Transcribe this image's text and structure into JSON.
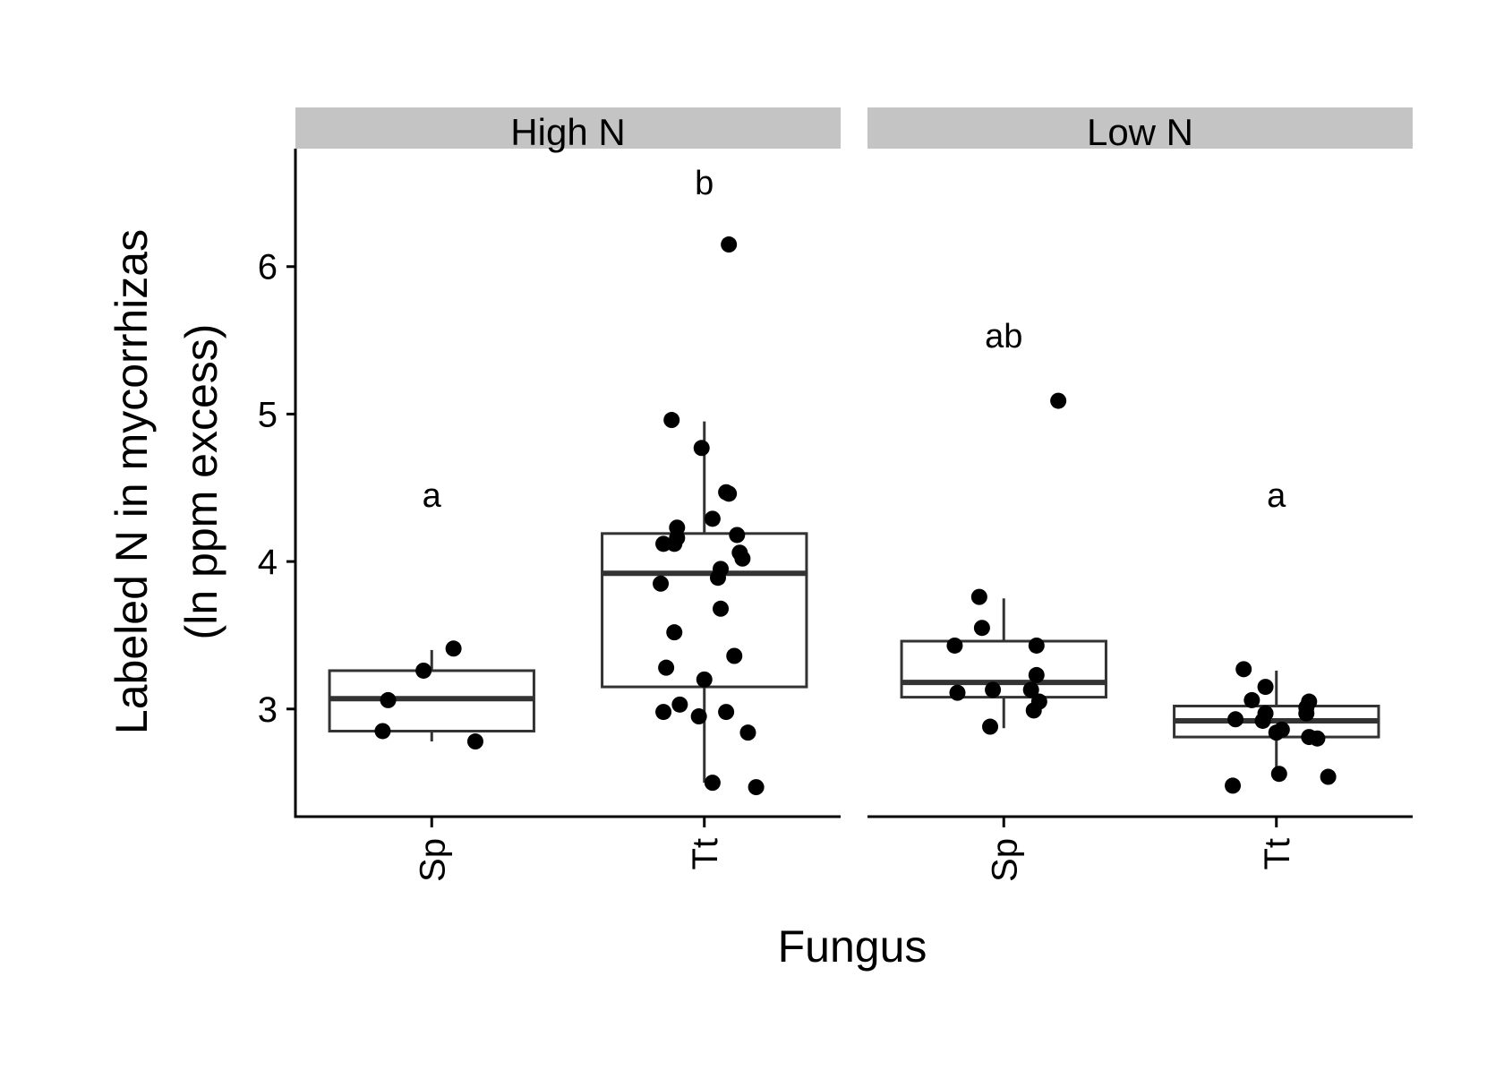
{
  "chart_data": {
    "type": "boxplot",
    "xlabel": "Fungus",
    "ylabel_line1": "Labeled N in mycorrhizas",
    "ylabel_line2": "(ln ppm excess)",
    "ylim": [
      2.27,
      6.8
    ],
    "y_ticks": [
      3,
      4,
      5,
      6
    ],
    "categories": [
      "Sp",
      "Tt"
    ],
    "panels": [
      {
        "name": "High N",
        "groups": [
          {
            "category": "Sp",
            "letter": "a",
            "letter_y": 4.45,
            "box": {
              "q1": 2.85,
              "median": 3.07,
              "q3": 3.26,
              "whisker_low": 2.78,
              "whisker_high": 3.4
            },
            "points": [
              [
                0.08,
                3.41
              ],
              [
                -0.03,
                3.26
              ],
              [
                -0.16,
                3.06
              ],
              [
                -0.18,
                2.85
              ],
              [
                0.16,
                2.78
              ]
            ]
          },
          {
            "category": "Tt",
            "letter": "b",
            "letter_y": 6.57,
            "box": {
              "q1": 3.15,
              "median": 3.92,
              "q3": 4.19,
              "whisker_low": 2.5,
              "whisker_high": 4.95
            },
            "points": [
              [
                0.09,
                6.15
              ],
              [
                -0.12,
                4.96
              ],
              [
                -0.01,
                4.77
              ],
              [
                0.08,
                4.47
              ],
              [
                0.09,
                4.46
              ],
              [
                0.03,
                4.29
              ],
              [
                -0.1,
                4.23
              ],
              [
                -0.1,
                4.16
              ],
              [
                0.12,
                4.18
              ],
              [
                -0.15,
                4.12
              ],
              [
                -0.11,
                4.12
              ],
              [
                0.13,
                4.06
              ],
              [
                0.14,
                4.02
              ],
              [
                0.06,
                3.95
              ],
              [
                0.05,
                3.89
              ],
              [
                -0.16,
                3.85
              ],
              [
                0.06,
                3.68
              ],
              [
                -0.11,
                3.52
              ],
              [
                0.11,
                3.36
              ],
              [
                -0.14,
                3.28
              ],
              [
                0.0,
                3.2
              ],
              [
                -0.09,
                3.03
              ],
              [
                -0.15,
                2.98
              ],
              [
                0.08,
                2.98
              ],
              [
                -0.02,
                2.95
              ],
              [
                0.16,
                2.84
              ],
              [
                0.03,
                2.5
              ],
              [
                0.19,
                2.47
              ]
            ]
          }
        ]
      },
      {
        "name": "Low N",
        "groups": [
          {
            "category": "Sp",
            "letter": "ab",
            "letter_y": 5.53,
            "box": {
              "q1": 3.08,
              "median": 3.18,
              "q3": 3.46,
              "whisker_low": 2.87,
              "whisker_high": 3.75
            },
            "points": [
              [
                0.2,
                5.09
              ],
              [
                -0.09,
                3.76
              ],
              [
                -0.08,
                3.55
              ],
              [
                -0.18,
                3.43
              ],
              [
                0.12,
                3.43
              ],
              [
                0.12,
                3.23
              ],
              [
                -0.04,
                3.13
              ],
              [
                0.1,
                3.13
              ],
              [
                -0.17,
                3.11
              ],
              [
                0.13,
                3.05
              ],
              [
                0.11,
                2.99
              ],
              [
                -0.05,
                2.88
              ]
            ]
          },
          {
            "category": "Tt",
            "letter": "a",
            "letter_y": 4.45,
            "box": {
              "q1": 2.81,
              "median": 2.92,
              "q3": 3.02,
              "whisker_low": 2.55,
              "whisker_high": 3.26
            },
            "points": [
              [
                -0.12,
                3.27
              ],
              [
                -0.04,
                3.15
              ],
              [
                -0.09,
                3.06
              ],
              [
                0.12,
                3.05
              ],
              [
                0.11,
                3.01
              ],
              [
                0.11,
                2.97
              ],
              [
                -0.04,
                2.97
              ],
              [
                -0.15,
                2.93
              ],
              [
                -0.05,
                2.92
              ],
              [
                0.02,
                2.86
              ],
              [
                0.0,
                2.84
              ],
              [
                0.12,
                2.81
              ],
              [
                0.15,
                2.8
              ],
              [
                0.01,
                2.56
              ],
              [
                0.19,
                2.54
              ],
              [
                -0.16,
                2.48
              ]
            ]
          }
        ]
      }
    ]
  }
}
